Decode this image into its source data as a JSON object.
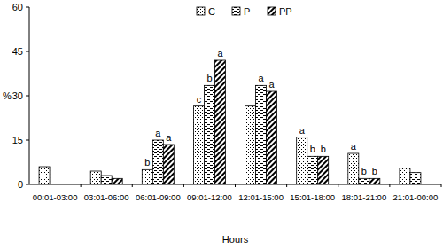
{
  "chart_data": {
    "type": "bar",
    "x_label": "Hours",
    "y_label": "%",
    "categories": [
      "00:01-03:00",
      "03:01-06:00",
      "06:01-09:00",
      "09:01-12:00",
      "12:01-15:00",
      "15:01-18:00",
      "18:01-21:00",
      "21:01-00:00"
    ],
    "series": [
      {
        "name": "C",
        "color": "#000000",
        "values": [
          6,
          4.5,
          5,
          26.5,
          26.5,
          16,
          10.5,
          5.5
        ]
      },
      {
        "name": "P",
        "color": "#000000",
        "values": [
          0,
          3,
          15,
          33.5,
          33.5,
          9.5,
          2,
          4
        ]
      },
      {
        "name": "PP",
        "color": "#000000",
        "values": [
          0,
          2,
          13.5,
          42,
          31.5,
          9.5,
          2,
          0
        ]
      }
    ],
    "annotations": [
      {
        "category": "06:01-09:00",
        "series": "C",
        "text": "b"
      },
      {
        "category": "06:01-09:00",
        "series": "P",
        "text": "a"
      },
      {
        "category": "06:01-09:00",
        "series": "PP",
        "text": "a"
      },
      {
        "category": "09:01-12:00",
        "series": "C",
        "text": "c"
      },
      {
        "category": "09:01-12:00",
        "series": "P",
        "text": "b"
      },
      {
        "category": "09:01-12:00",
        "series": "PP",
        "text": "a"
      },
      {
        "category": "12:01-15:00",
        "series": "P",
        "text": "a"
      },
      {
        "category": "12:01-15:00",
        "series": "PP",
        "text": "a"
      },
      {
        "category": "15:01-18:00",
        "series": "C",
        "text": "a"
      },
      {
        "category": "15:01-18:00",
        "series": "P",
        "text": "b"
      },
      {
        "category": "15:01-18:00",
        "series": "PP",
        "text": "b"
      },
      {
        "category": "18:01-21:00",
        "series": "C",
        "text": "a"
      },
      {
        "category": "18:01-21:00",
        "series": "P",
        "text": "b"
      },
      {
        "category": "18:01-21:00",
        "series": "PP",
        "text": "b"
      }
    ],
    "ylim": [
      0,
      60
    ],
    "yticks": [
      0,
      15,
      30,
      45,
      60
    ],
    "grid": false,
    "legend": "top"
  }
}
